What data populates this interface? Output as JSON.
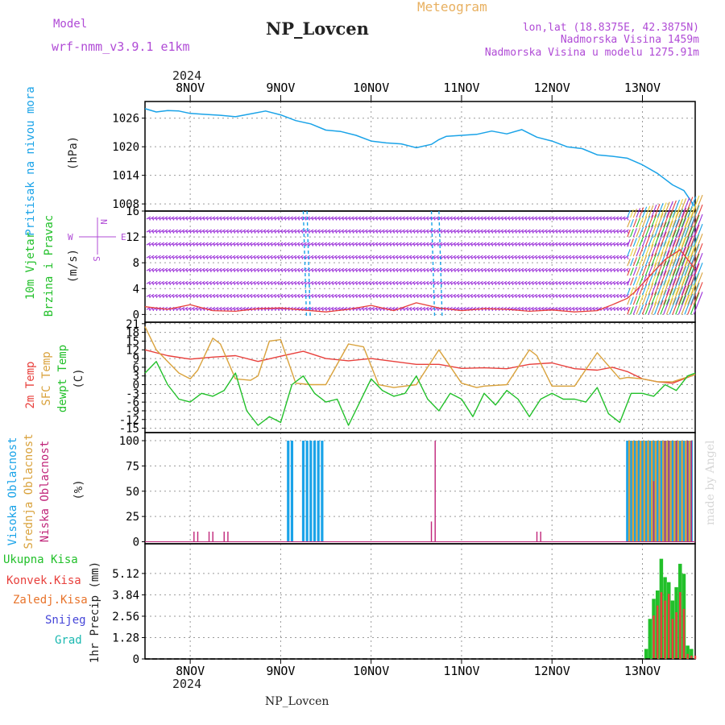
{
  "header": {
    "model_label": "Model",
    "model_name": "wrf-nmm_v3.9.1 e1km",
    "title": "NP_Lovcen",
    "subtitle": "Meteogram",
    "lonlat": "lon,lat (18.8375E, 42.3875N)",
    "elevation": "Nadmorska Visina 1459m",
    "elevation_model": "Nadmorska Visina u modelu 1275.91m",
    "year": "2024",
    "footer_title": "NP_Lovcen",
    "credit": "made by Angel"
  },
  "colors": {
    "pressure": "#1aa3e8",
    "wind_purple": "#9b30d9",
    "temp_2m": "#e8403c",
    "temp_sfc": "#d9a23c",
    "dewpoint": "#22c02a",
    "cloud_high": "#1aa3e8",
    "cloud_mid": "#d9a23c",
    "cloud_low": "#c0267a",
    "precip_total": "#22c02a",
    "precip_conv": "#e8403c",
    "precip_frozen": "#e8732a",
    "snow": "#4545d8",
    "grad": "#1ab8b0",
    "purple_text": "#b04bd6",
    "orange_text": "#e8b060"
  },
  "x_axis": {
    "days": [
      "8NOV",
      "9NOV",
      "10NOV",
      "11NOV",
      "12NOV",
      "13NOV"
    ],
    "start_hour": 0,
    "end_hour": 146
  },
  "panels": {
    "pressure": {
      "labels": [
        "Pritisak na nivou mora",
        "(hPa)"
      ],
      "ticks": [
        1008,
        1014,
        1020,
        1026
      ],
      "ylim": [
        1006.5,
        1029.5
      ]
    },
    "wind": {
      "labels": [
        "10m Vjetar",
        "Brzina i Pravac",
        "(m/s)"
      ],
      "ticks": [
        0,
        4,
        8,
        12,
        16
      ],
      "ylim": [
        -1.2,
        16
      ],
      "compass": [
        "N",
        "S",
        "W",
        "E"
      ]
    },
    "temp": {
      "labels": [
        "2m Temp",
        "SFC Temp",
        "dewpt Temp",
        "(C)"
      ],
      "ticks": [
        -15,
        -12,
        -9,
        -6,
        -3,
        0,
        3,
        6,
        9,
        12,
        15,
        18,
        21
      ],
      "ylim": [
        -16.5,
        21.5
      ]
    },
    "cloud": {
      "labels": [
        "Visoka Oblacnost",
        "Srednja Oblacnost",
        "Niska Oblacnost",
        "(%)"
      ],
      "ticks": [
        0,
        25,
        50,
        75,
        100
      ],
      "ylim": [
        -2,
        108
      ]
    },
    "precip": {
      "labels": [
        "Ukupna Kisa",
        "Konvek.Kisa",
        "Zaledj.Kisa",
        "Snijeg",
        "Grad",
        "1hr Precip (mm)"
      ],
      "ticks": [
        "0",
        "1.28",
        "2.56",
        "3.84",
        "5.12"
      ],
      "ylim": [
        0,
        6.9
      ]
    }
  },
  "chart_data": [
    {
      "type": "line",
      "title": "Pritisak na nivou mora",
      "ylabel": "(hPa)",
      "x_unit": "hours from 7 NOV 12:00",
      "series": [
        {
          "name": "Pritisak na nivou mora",
          "x": [
            0,
            3,
            6,
            9,
            12,
            16,
            20,
            24,
            28,
            32,
            36,
            40,
            44,
            48,
            52,
            56,
            60,
            64,
            68,
            72,
            76,
            78,
            80,
            84,
            88,
            92,
            96,
            100,
            104,
            108,
            112,
            116,
            120,
            124,
            128,
            132,
            136,
            140,
            143,
            146
          ],
          "values": [
            1028.0,
            1027.3,
            1027.6,
            1027.5,
            1027.0,
            1026.8,
            1026.6,
            1026.3,
            1026.9,
            1027.5,
            1026.7,
            1025.5,
            1024.8,
            1023.5,
            1023.2,
            1022.4,
            1021.2,
            1020.8,
            1020.6,
            1019.8,
            1020.5,
            1021.5,
            1022.2,
            1022.4,
            1022.6,
            1023.3,
            1022.7,
            1023.6,
            1022.0,
            1021.2,
            1020.0,
            1019.6,
            1018.3,
            1018.0,
            1017.6,
            1016.2,
            1014.4,
            1012.0,
            1010.8,
            1007.3
          ]
        }
      ]
    },
    {
      "type": "line",
      "title": "10m Vjetar Brzina i Pravac",
      "ylabel": "(m/s)",
      "series": [
        {
          "name": "10m Vjetar Brzina i Pravac",
          "x": [
            0,
            6,
            12,
            18,
            24,
            30,
            36,
            42,
            48,
            54,
            60,
            66,
            72,
            78,
            84,
            90,
            96,
            102,
            108,
            114,
            120,
            124,
            128,
            130,
            134,
            138,
            142,
            146
          ],
          "values": [
            1.2,
            0.8,
            1.5,
            0.6,
            0.5,
            0.9,
            1.0,
            0.7,
            0.4,
            0.8,
            1.4,
            0.6,
            1.8,
            1.0,
            0.6,
            0.9,
            0.8,
            0.5,
            0.7,
            0.4,
            0.6,
            1.5,
            2.5,
            3.5,
            6.0,
            8.5,
            10.0,
            7.0
          ]
        }
      ]
    },
    {
      "type": "line",
      "title": "2m Temp / SFC Temp / dewpt Temp",
      "ylabel": "(C)",
      "series": [
        {
          "name": "2m Temp",
          "x": [
            0,
            6,
            12,
            18,
            24,
            30,
            36,
            42,
            48,
            54,
            60,
            66,
            72,
            78,
            84,
            90,
            96,
            102,
            108,
            114,
            120,
            124,
            128,
            132,
            136,
            140,
            146
          ],
          "values": [
            12.0,
            10.0,
            8.8,
            9.5,
            10.0,
            8.0,
            9.8,
            11.5,
            9.0,
            8.2,
            9.0,
            8.0,
            7.0,
            7.0,
            5.6,
            5.8,
            5.5,
            7.0,
            7.5,
            5.5,
            5.0,
            6.0,
            4.5,
            2.0,
            1.0,
            0.5,
            3.5
          ]
        },
        {
          "name": "SFC Temp",
          "x": [
            0,
            3,
            6,
            9,
            12,
            14,
            18,
            20,
            24,
            28,
            30,
            33,
            36,
            40,
            44,
            48,
            54,
            58,
            62,
            66,
            72,
            78,
            84,
            88,
            90,
            96,
            102,
            104,
            108,
            114,
            120,
            126,
            128,
            132,
            136,
            140,
            146
          ],
          "values": [
            20.0,
            12.0,
            8.0,
            4.0,
            2.0,
            5.0,
            16.0,
            14.0,
            2.0,
            1.5,
            3.0,
            15.0,
            15.5,
            0.5,
            0.0,
            0.0,
            14.0,
            13.0,
            0.0,
            -1.0,
            0.0,
            12.0,
            0.5,
            -1.0,
            -0.5,
            0.0,
            12.0,
            10.0,
            -0.5,
            -0.5,
            11.0,
            2.0,
            2.5,
            2.0,
            1.0,
            1.0,
            3.5
          ]
        },
        {
          "name": "dewpt Temp",
          "x": [
            0,
            3,
            6,
            9,
            12,
            15,
            18,
            21,
            24,
            27,
            30,
            33,
            36,
            39,
            42,
            45,
            48,
            51,
            54,
            57,
            60,
            63,
            66,
            69,
            72,
            75,
            78,
            81,
            84,
            87,
            90,
            93,
            96,
            99,
            102,
            105,
            108,
            111,
            114,
            117,
            120,
            123,
            126,
            129,
            132,
            135,
            138,
            141,
            144,
            146
          ],
          "values": [
            4.0,
            8.0,
            0.0,
            -5.0,
            -6.0,
            -3.0,
            -4.0,
            -2.0,
            4.0,
            -9.0,
            -14.0,
            -11.0,
            -13.0,
            0.0,
            3.0,
            -3.0,
            -6.0,
            -5.0,
            -14.0,
            -6.0,
            2.0,
            -2.0,
            -4.0,
            -3.0,
            3.0,
            -5.0,
            -9.0,
            -3.0,
            -5.0,
            -11.0,
            -3.0,
            -7.0,
            -2.0,
            -5.0,
            -11.0,
            -5.0,
            -3.0,
            -5.0,
            -5.0,
            -6.0,
            -1.0,
            -10.0,
            -13.0,
            -3.0,
            -3.0,
            -4.0,
            0.0,
            -2.0,
            3.0,
            4.0
          ]
        }
      ]
    },
    {
      "type": "bar",
      "title": "Visoka / Srednja / Niska Oblacnost",
      "ylabel": "(%)",
      "series": [
        {
          "name": "Visoka Oblacnost",
          "x": [
            38,
            39,
            42,
            43,
            44,
            45,
            46,
            47,
            128.0,
            129.0,
            130.0,
            131.0,
            132.0,
            133.0,
            134.0,
            135.0,
            136.0,
            137.0,
            138.0,
            139.0,
            140.0,
            141.0,
            142.0,
            143.0,
            144.0,
            145.0
          ],
          "values": [
            100,
            100,
            100,
            100,
            100,
            100,
            100,
            100,
            100,
            100,
            100,
            100,
            100,
            100,
            100,
            100,
            100,
            100,
            100,
            100,
            100,
            100,
            100,
            100,
            100,
            100
          ]
        },
        {
          "name": "Srednja Oblacnost",
          "x": [
            128.5,
            129.5,
            130.5,
            131.5,
            132.5,
            133.5,
            134.5,
            135.5,
            136.5,
            137.5,
            138.5,
            139.5,
            140.5,
            141.5,
            142.5,
            143.5,
            144.5
          ],
          "values": [
            100,
            100,
            100,
            100,
            100,
            100,
            100,
            100,
            100,
            100,
            100,
            100,
            100,
            100,
            100,
            100,
            100
          ]
        },
        {
          "name": "Niska Oblacnost",
          "x": [
            13,
            14,
            17,
            18,
            21,
            22,
            76,
            77,
            104,
            105,
            135,
            138,
            139,
            141,
            144,
            145
          ],
          "values": [
            10,
            10,
            10,
            10,
            10,
            10,
            20,
            100,
            10,
            10,
            60,
            100,
            100,
            100,
            100,
            100
          ]
        }
      ]
    },
    {
      "type": "bar",
      "title": "Ukupna Kisa / Konvek.Kisa",
      "ylabel": "1hr Precip (mm)",
      "series": [
        {
          "name": "Ukupna Kisa",
          "x": [
            133,
            134,
            135,
            136,
            137,
            138,
            139,
            140,
            141,
            142,
            143,
            144,
            145
          ],
          "values": [
            0.6,
            2.4,
            3.6,
            4.1,
            6.0,
            4.9,
            4.6,
            3.5,
            4.3,
            5.7,
            5.1,
            0.8,
            0.6
          ]
        },
        {
          "name": "Konvek.Kisa",
          "x": [
            135,
            136,
            137,
            138,
            139,
            140,
            141,
            142,
            143,
            144,
            145,
            146
          ],
          "values": [
            2.6,
            3.2,
            4.0,
            3.5,
            3.9,
            2.4,
            2.8,
            4.0,
            3.0,
            0.3,
            0.2,
            0.2
          ]
        }
      ]
    }
  ]
}
